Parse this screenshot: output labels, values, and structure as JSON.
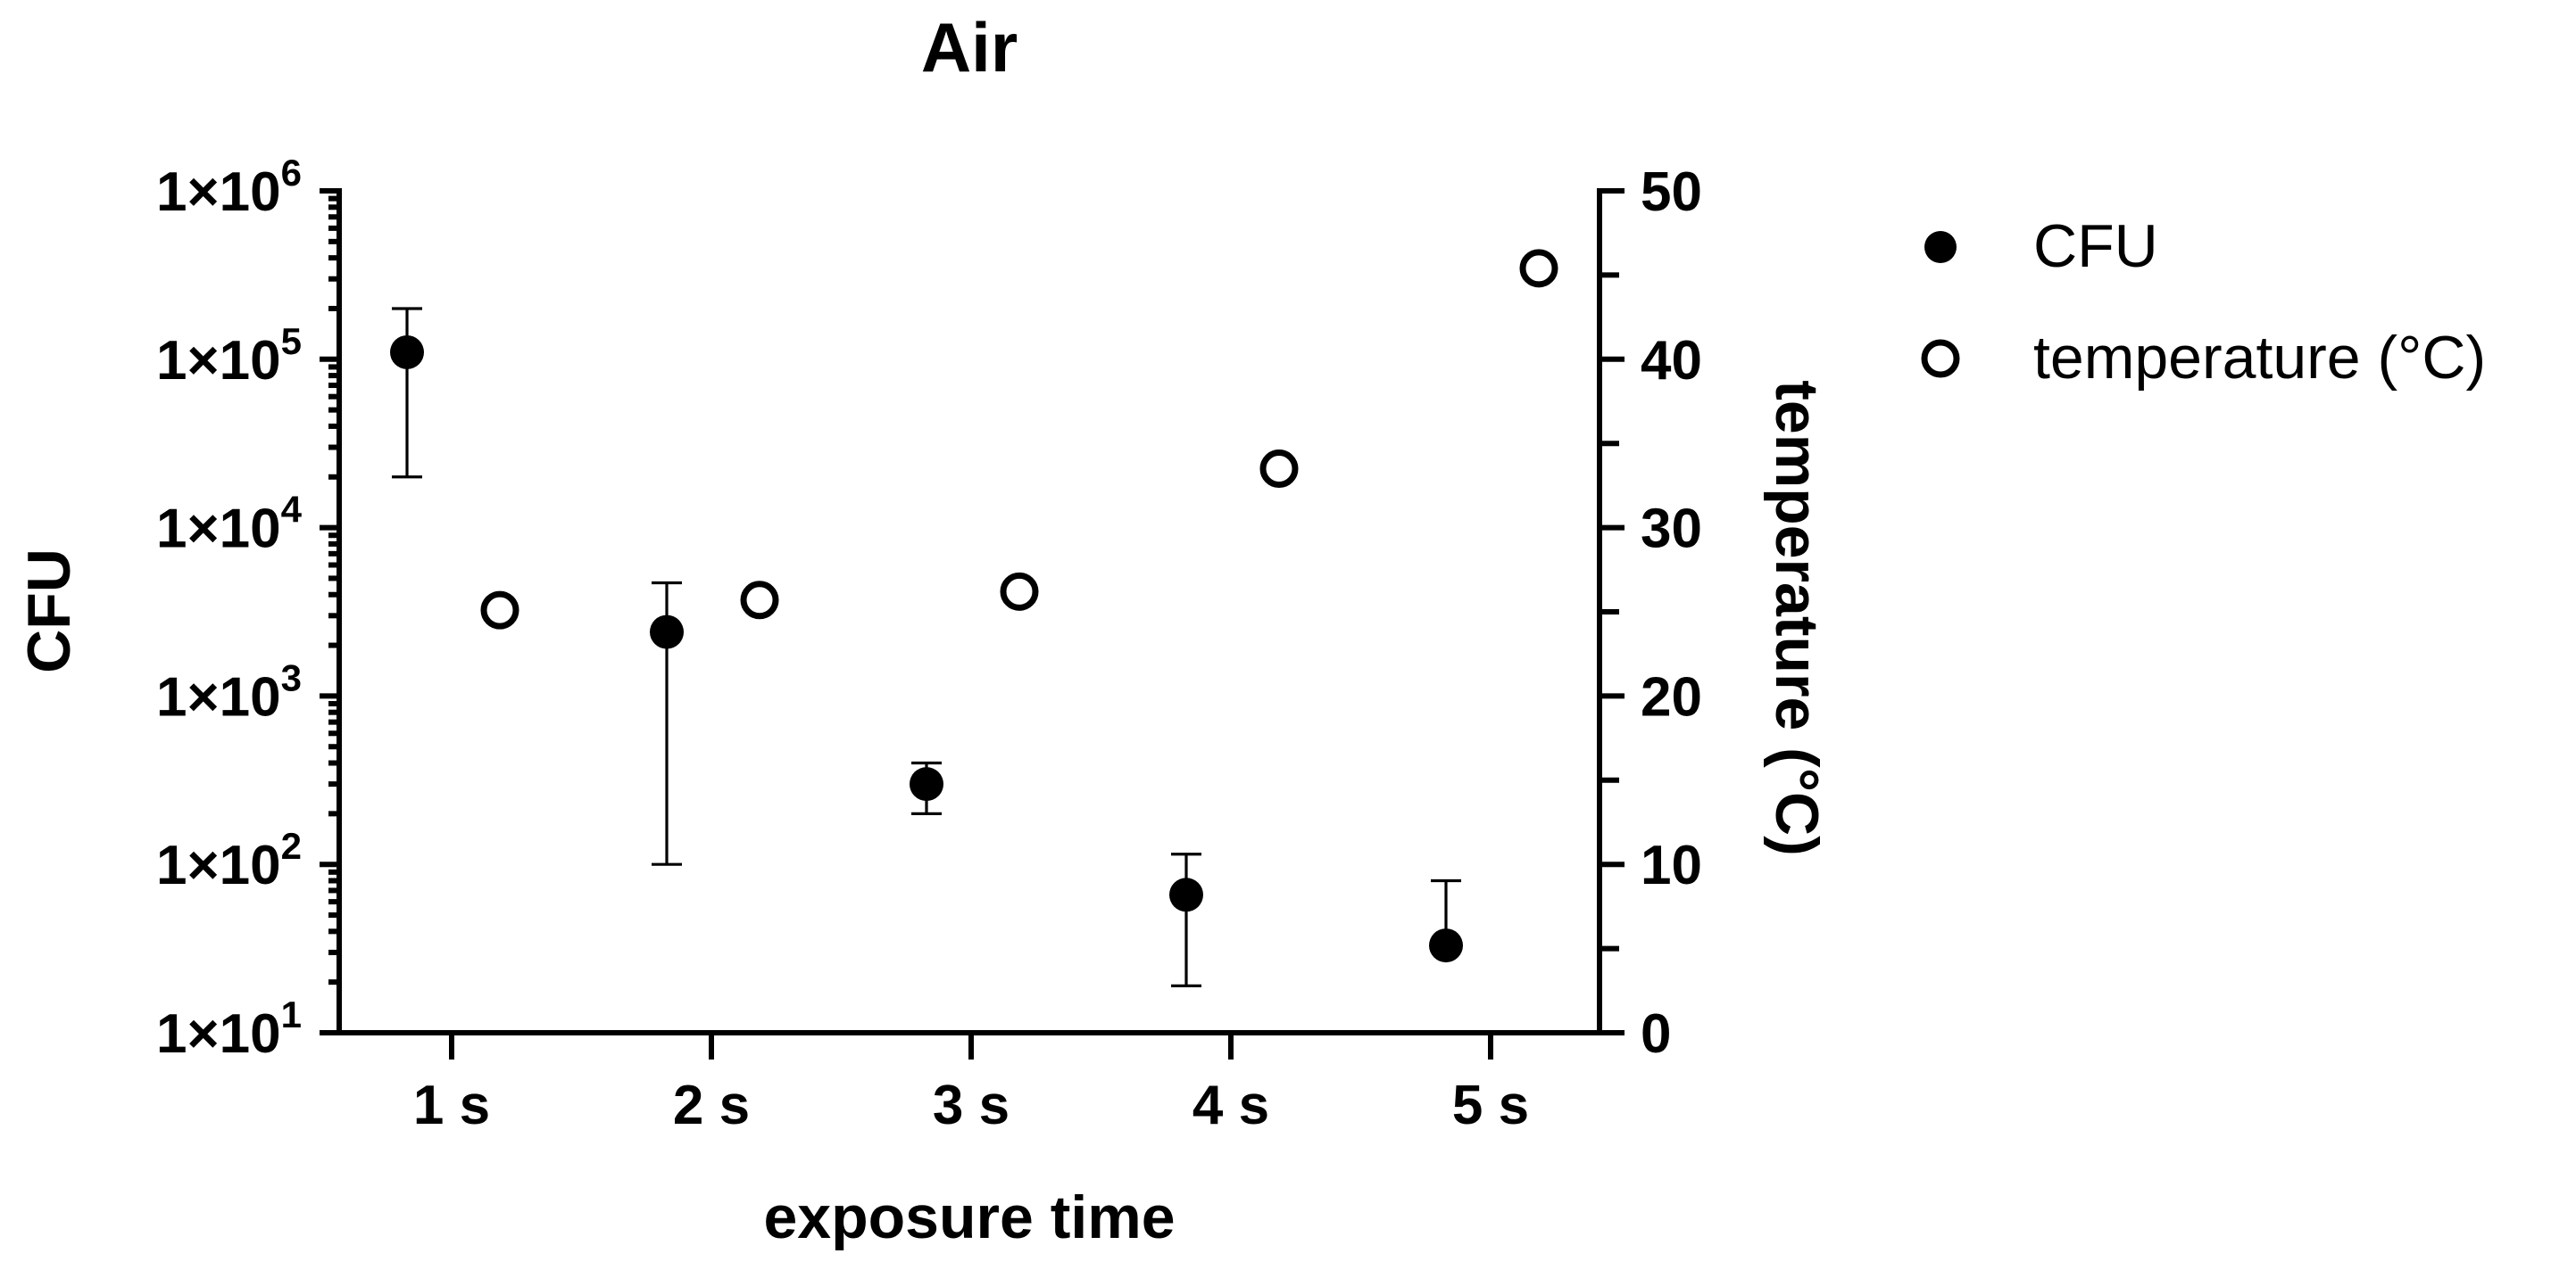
{
  "chart_data": {
    "type": "scatter",
    "title": "Air",
    "xlabel": "exposure time",
    "ylabel_left": "CFU",
    "ylabel_right": "temperature (°C)",
    "categories": [
      "1 s",
      "2 s",
      "3 s",
      "4 s",
      "5 s"
    ],
    "left_axis": {
      "scale": "log",
      "ylim": [
        10,
        1000000
      ],
      "ticks": [
        {
          "value": 10,
          "base": "1×10",
          "exp": "1"
        },
        {
          "value": 100,
          "base": "1×10",
          "exp": "2"
        },
        {
          "value": 1000,
          "base": "1×10",
          "exp": "3"
        },
        {
          "value": 10000,
          "base": "1×10",
          "exp": "4"
        },
        {
          "value": 100000,
          "base": "1×10",
          "exp": "5"
        },
        {
          "value": 1000000,
          "base": "1×10",
          "exp": "6"
        }
      ]
    },
    "right_axis": {
      "scale": "linear",
      "ylim": [
        0,
        50
      ],
      "ticks": [
        "0",
        "10",
        "20",
        "30",
        "40",
        "50"
      ],
      "minor_ticks": [
        5,
        15,
        25,
        35,
        45
      ]
    },
    "series": [
      {
        "name": "CFU",
        "axis": "left",
        "marker": "filled-circle",
        "values": [
          110000,
          2400,
          300,
          66,
          33
        ],
        "err_low": [
          20000,
          100,
          200,
          19,
          33
        ],
        "err_high": [
          200000,
          4700,
          400,
          115,
          80
        ]
      },
      {
        "name": "temperature (°C)",
        "axis": "right",
        "marker": "open-circle",
        "values": [
          25.1,
          25.7,
          26.2,
          33.5,
          45.4
        ]
      }
    ],
    "legend": {
      "position": "top-right",
      "entries": [
        "CFU",
        "temperature (°C)"
      ]
    }
  }
}
